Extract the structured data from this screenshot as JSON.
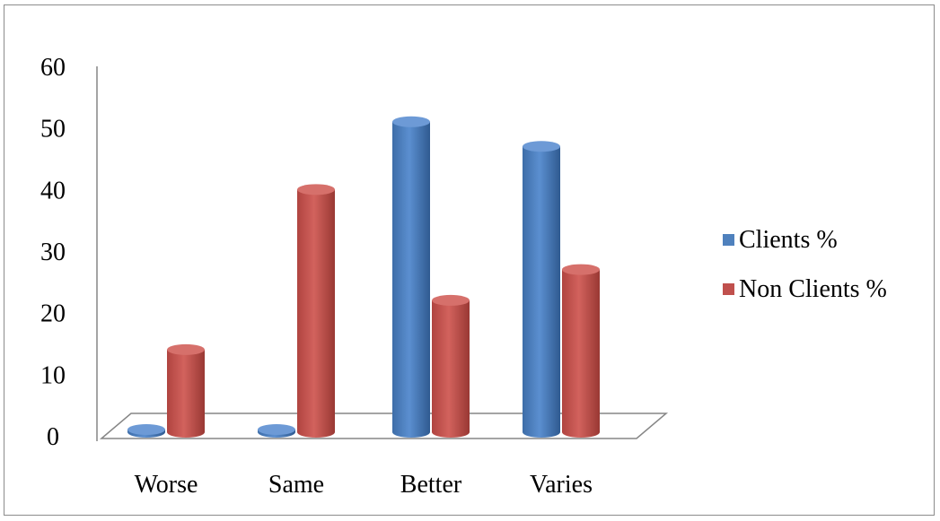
{
  "chart_data": {
    "type": "bar",
    "categories": [
      "Worse",
      "Same",
      "Better",
      "Varies"
    ],
    "series": [
      {
        "name": "Clients %",
        "values": [
          1,
          1,
          51,
          47
        ],
        "color": "#4f81bd"
      },
      {
        "name": "Non Clients %",
        "values": [
          14,
          40,
          22,
          27
        ],
        "color": "#c0504d"
      }
    ],
    "ylim": [
      0,
      60
    ],
    "yticks": [
      0,
      10,
      20,
      30,
      40,
      50,
      60
    ],
    "grid": false,
    "legend_position": "right",
    "style": "3d-cylinder"
  }
}
